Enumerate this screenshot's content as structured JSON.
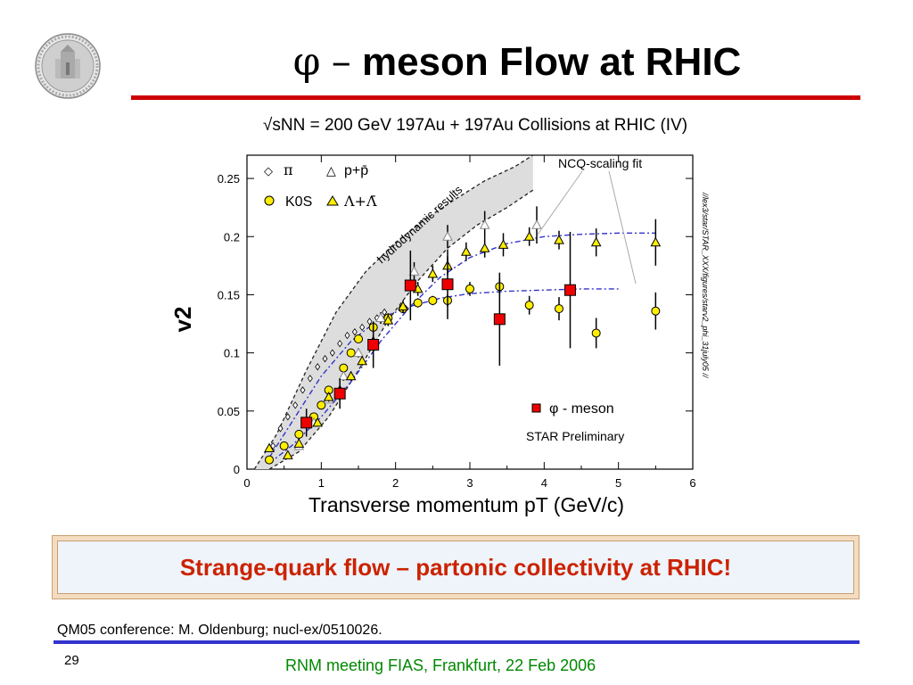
{
  "slide": {
    "title_symbol": "φ",
    "title_dash": "–",
    "title_rest": "meson Flow at RHIC",
    "banner": "Strange-quark flow – partonic collectivity at RHIC!",
    "reference": "QM05 conference: M. Oldenburg; nucl-ex/0510026.",
    "page_number": "29",
    "footer": "RNM meeting FIAS, Frankfurt, 22 Feb 2006",
    "colors": {
      "title_rule": "#cc0000",
      "banner_text": "#cc2200",
      "bottom_rule": "#3333cc",
      "footer_text": "#008800"
    },
    "logo_icon": "university-seal-icon"
  },
  "chart_data": {
    "type": "scatter",
    "title": "√sNN = 200 GeV 197Au + 197Au Collisions at RHIC (IV)",
    "xlabel": "Transverse momentum pT (GeV/c)",
    "ylabel": "v2",
    "xlim": [
      0,
      6
    ],
    "ylim": [
      0,
      0.27
    ],
    "xticks": [
      "0",
      "1",
      "2",
      "3",
      "4",
      "5",
      "6"
    ],
    "yticks": [
      "0",
      "0.05",
      "0.1",
      "0.15",
      "0.2",
      "0.25"
    ],
    "grid": false,
    "legend": [
      {
        "symbol": "◇",
        "label": "π"
      },
      {
        "symbol": "△",
        "label": "p+p̄"
      },
      {
        "symbol": "●",
        "label": "K0S"
      },
      {
        "symbol": "▲",
        "label": "Λ+Λ̄"
      }
    ],
    "annotations": {
      "hydro": "hydrodynamic results",
      "ncq": "NCQ-scaling fit",
      "phi_legend": "φ - meson",
      "preliminary": "STAR Preliminary",
      "path": "//lex3/star/STAR_XXX/figures/starv2_phi_31july05 //"
    },
    "series": [
      {
        "name": "π",
        "marker": "diamond",
        "color": "#ffffff",
        "x": [
          0.35,
          0.45,
          0.55,
          0.65,
          0.75,
          0.85,
          0.95,
          1.05,
          1.15,
          1.25,
          1.35,
          1.45,
          1.55,
          1.65,
          1.75,
          1.85
        ],
        "y": [
          0.02,
          0.035,
          0.045,
          0.055,
          0.068,
          0.078,
          0.088,
          0.095,
          0.1,
          0.108,
          0.115,
          0.118,
          0.122,
          0.127,
          0.13,
          0.135
        ]
      },
      {
        "name": "K0S",
        "marker": "circle",
        "color": "#ffee00",
        "x": [
          0.3,
          0.5,
          0.7,
          0.9,
          1.0,
          1.1,
          1.3,
          1.4,
          1.5,
          1.7,
          1.9,
          2.1,
          2.3,
          2.5,
          2.7,
          3.0,
          3.4,
          3.8,
          4.2,
          4.7,
          5.5
        ],
        "y": [
          0.008,
          0.02,
          0.03,
          0.045,
          0.055,
          0.068,
          0.087,
          0.1,
          0.112,
          0.122,
          0.13,
          0.138,
          0.143,
          0.145,
          0.145,
          0.155,
          0.157,
          0.141,
          0.138,
          0.117,
          0.136
        ],
        "err": [
          0.003,
          0.003,
          0.003,
          0.003,
          0.003,
          0.003,
          0.003,
          0.003,
          0.003,
          0.004,
          0.004,
          0.004,
          0.004,
          0.004,
          0.005,
          0.006,
          0.007,
          0.008,
          0.01,
          0.013,
          0.016
        ]
      },
      {
        "name": "p+p̄",
        "marker": "triangle-open",
        "color": "#ffffff",
        "x": [
          0.7,
          0.9,
          1.1,
          1.3,
          1.5,
          1.8,
          2.25,
          2.7,
          3.2,
          3.9
        ],
        "y": [
          0.02,
          0.04,
          0.06,
          0.08,
          0.1,
          0.13,
          0.17,
          0.2,
          0.21,
          0.21
        ],
        "err": [
          0.003,
          0.003,
          0.003,
          0.004,
          0.004,
          0.005,
          0.008,
          0.01,
          0.012,
          0.016
        ]
      },
      {
        "name": "Λ+Λ̄",
        "marker": "triangle",
        "color": "#ffee00",
        "x": [
          0.3,
          0.55,
          0.7,
          0.95,
          1.1,
          1.25,
          1.4,
          1.55,
          1.7,
          1.9,
          2.1,
          2.3,
          2.5,
          2.7,
          2.95,
          3.2,
          3.45,
          3.8,
          4.2,
          4.7,
          5.5
        ],
        "y": [
          0.018,
          0.012,
          0.022,
          0.04,
          0.062,
          0.068,
          0.08,
          0.093,
          0.11,
          0.128,
          0.14,
          0.155,
          0.168,
          0.175,
          0.187,
          0.19,
          0.193,
          0.2,
          0.197,
          0.195,
          0.195
        ],
        "err": [
          0.003,
          0.003,
          0.003,
          0.003,
          0.004,
          0.004,
          0.004,
          0.004,
          0.005,
          0.005,
          0.005,
          0.006,
          0.007,
          0.008,
          0.008,
          0.008,
          0.01,
          0.008,
          0.008,
          0.012,
          0.02
        ]
      },
      {
        "name": "φ - meson",
        "marker": "square",
        "color": "#ee0000",
        "x": [
          0.8,
          1.25,
          1.7,
          2.2,
          2.7,
          3.4,
          4.35
        ],
        "y": [
          0.04,
          0.065,
          0.107,
          0.158,
          0.159,
          0.129,
          0.154
        ],
        "err": [
          0.012,
          0.013,
          0.02,
          0.03,
          0.03,
          0.04,
          0.05
        ]
      }
    ],
    "fits": [
      {
        "name": "NCQ-scaling fit (baryons)",
        "color": "#3333cc",
        "x": [
          0.3,
          0.6,
          1.0,
          1.4,
          1.8,
          2.2,
          2.6,
          3.0,
          3.5,
          4.0,
          4.5,
          5.0,
          5.5
        ],
        "y": [
          0.005,
          0.02,
          0.045,
          0.075,
          0.11,
          0.14,
          0.165,
          0.182,
          0.194,
          0.2,
          0.202,
          0.203,
          0.203
        ]
      },
      {
        "name": "NCQ-scaling fit (mesons)",
        "color": "#3333cc",
        "x": [
          0.3,
          0.6,
          1.0,
          1.4,
          1.8,
          2.2,
          2.6,
          3.0,
          3.5,
          4.0,
          4.5,
          5.0
        ],
        "y": [
          0.01,
          0.04,
          0.08,
          0.11,
          0.13,
          0.14,
          0.147,
          0.151,
          0.153,
          0.154,
          0.155,
          0.155
        ]
      }
    ],
    "hydro_band": {
      "upper": {
        "x": [
          0.1,
          0.4,
          0.8,
          1.2,
          1.6,
          2.0,
          2.4,
          2.8,
          3.2,
          3.6,
          3.85
        ],
        "y": [
          0.0,
          0.03,
          0.085,
          0.135,
          0.17,
          0.195,
          0.215,
          0.232,
          0.248,
          0.26,
          0.27
        ]
      },
      "lower": {
        "x": [
          0.3,
          0.7,
          1.1,
          1.5,
          1.9,
          2.3,
          2.7,
          3.1,
          3.5,
          3.85
        ],
        "y": [
          0.0,
          0.015,
          0.045,
          0.085,
          0.128,
          0.162,
          0.19,
          0.21,
          0.225,
          0.24
        ]
      }
    }
  }
}
